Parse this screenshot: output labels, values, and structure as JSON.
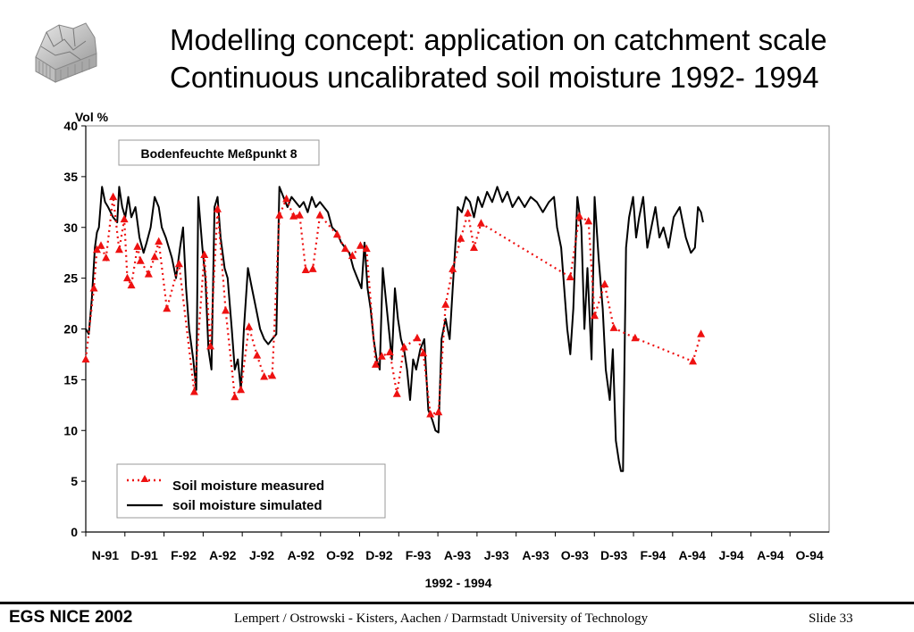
{
  "title_line1": "Modelling concept: application on catchment scale",
  "title_line2": "Continuous uncalibrated soil moisture 1992- 1994",
  "footer": {
    "conference": "EGS NICE 2002",
    "credit": "Lempert / Ostrowski  - Kisters, Aachen / Darmstadt University of Technology",
    "slide": "Slide  33"
  },
  "logo_icon": "catchment-terrain-icon",
  "chart_data": {
    "type": "line",
    "title": "Bodenfeuchte Meßpunkt 8",
    "ylabel": "Vol %",
    "xlabel": "1992 - 1994",
    "ylim": [
      0,
      40
    ],
    "yticks": [
      0,
      5,
      10,
      15,
      20,
      25,
      30,
      35,
      40
    ],
    "xlim": [
      0,
      36.67
    ],
    "x_unit": "months since Nov 1991",
    "xticks": [
      "N-91",
      "D-91",
      "F-92",
      "A-92",
      "J-92",
      "A-92",
      "O-92",
      "D-92",
      "F-93",
      "A-93",
      "J-93",
      "A-93",
      "O-93",
      "D-93",
      "F-94",
      "A-94",
      "J-94",
      "A-94",
      "O-94"
    ],
    "grid": false,
    "legend_position": "bottom-left",
    "colors": {
      "measured": "#ee1111",
      "simulated": "#000000"
    },
    "series": [
      {
        "name": "Soil moisture measured",
        "style": "dotted-triangle",
        "points": [
          [
            0,
            17
          ],
          [
            0.4,
            24
          ],
          [
            0.55,
            27.8
          ],
          [
            0.75,
            28.2
          ],
          [
            1.0,
            27
          ],
          [
            1.35,
            33
          ],
          [
            1.65,
            27.8
          ],
          [
            1.9,
            30.8
          ],
          [
            2.05,
            25
          ],
          [
            2.25,
            24.3
          ],
          [
            2.55,
            28.1
          ],
          [
            2.7,
            26.7
          ],
          [
            3.1,
            25.4
          ],
          [
            3.4,
            27.1
          ],
          [
            3.6,
            28.6
          ],
          [
            4.0,
            22
          ],
          [
            4.6,
            26.4
          ],
          [
            5.35,
            13.8
          ],
          [
            5.85,
            27.3
          ],
          [
            6.15,
            18.3
          ],
          [
            6.5,
            31.8
          ],
          [
            6.9,
            21.8
          ],
          [
            7.35,
            13.3
          ],
          [
            7.65,
            14
          ],
          [
            8.05,
            20.2
          ],
          [
            8.45,
            17.4
          ],
          [
            8.8,
            15.3
          ],
          [
            9.2,
            15.4
          ],
          [
            9.55,
            31.2
          ],
          [
            9.9,
            32.8
          ],
          [
            10.25,
            31.1
          ],
          [
            10.55,
            31.2
          ],
          [
            10.85,
            25.8
          ],
          [
            11.2,
            25.9
          ],
          [
            11.55,
            31.2
          ],
          [
            12.4,
            29.3
          ],
          [
            12.8,
            27.9
          ],
          [
            13.15,
            27.2
          ],
          [
            13.55,
            28.2
          ],
          [
            13.85,
            27.9
          ],
          [
            14.3,
            16.5
          ],
          [
            14.6,
            17.3
          ],
          [
            15.0,
            17.7
          ],
          [
            15.35,
            13.6
          ],
          [
            15.7,
            18.2
          ],
          [
            16.35,
            19.1
          ],
          [
            16.65,
            17.6
          ],
          [
            17.0,
            11.6
          ],
          [
            17.4,
            11.8
          ],
          [
            17.75,
            22.4
          ],
          [
            18.1,
            25.9
          ],
          [
            18.5,
            28.9
          ],
          [
            18.85,
            31.4
          ],
          [
            19.15,
            28
          ],
          [
            19.5,
            30.4
          ],
          [
            23.9,
            25.1
          ],
          [
            24.35,
            31.1
          ],
          [
            24.8,
            30.6
          ],
          [
            25.1,
            21.3
          ],
          [
            25.6,
            24.4
          ],
          [
            26.05,
            20.1
          ],
          [
            27.1,
            19.1
          ],
          [
            29.95,
            16.8
          ],
          [
            30.35,
            19.5
          ]
        ]
      },
      {
        "name": "soil moisture simulated",
        "style": "solid",
        "points": [
          [
            0,
            20
          ],
          [
            0.15,
            19.5
          ],
          [
            0.3,
            23
          ],
          [
            0.45,
            28
          ],
          [
            0.55,
            29.5
          ],
          [
            0.65,
            30
          ],
          [
            0.8,
            34
          ],
          [
            0.95,
            32.5
          ],
          [
            1.1,
            32
          ],
          [
            1.35,
            31
          ],
          [
            1.55,
            30.5
          ],
          [
            1.65,
            34
          ],
          [
            1.8,
            32
          ],
          [
            1.95,
            31
          ],
          [
            2.1,
            33
          ],
          [
            2.25,
            31
          ],
          [
            2.45,
            32
          ],
          [
            2.65,
            29
          ],
          [
            2.85,
            27.5
          ],
          [
            3.0,
            28.5
          ],
          [
            3.2,
            30
          ],
          [
            3.4,
            33
          ],
          [
            3.6,
            32
          ],
          [
            3.75,
            30
          ],
          [
            3.95,
            29
          ],
          [
            4.1,
            28
          ],
          [
            4.25,
            27
          ],
          [
            4.45,
            25
          ],
          [
            4.65,
            28
          ],
          [
            4.8,
            30
          ],
          [
            4.95,
            24
          ],
          [
            5.1,
            20
          ],
          [
            5.3,
            17
          ],
          [
            5.45,
            14
          ],
          [
            5.55,
            33
          ],
          [
            5.75,
            28
          ],
          [
            5.9,
            25
          ],
          [
            6.05,
            18
          ],
          [
            6.2,
            16
          ],
          [
            6.35,
            32
          ],
          [
            6.5,
            33
          ],
          [
            6.65,
            29
          ],
          [
            6.85,
            26
          ],
          [
            7.0,
            25
          ],
          [
            7.2,
            20
          ],
          [
            7.35,
            16
          ],
          [
            7.5,
            17
          ],
          [
            7.65,
            14
          ],
          [
            7.8,
            20
          ],
          [
            8.0,
            26
          ],
          [
            8.2,
            24
          ],
          [
            8.4,
            22
          ],
          [
            8.6,
            20
          ],
          [
            8.8,
            19
          ],
          [
            9.0,
            18.5
          ],
          [
            9.2,
            19
          ],
          [
            9.4,
            19.5
          ],
          [
            9.55,
            34
          ],
          [
            9.75,
            33
          ],
          [
            9.95,
            32
          ],
          [
            10.15,
            33
          ],
          [
            10.35,
            32.5
          ],
          [
            10.55,
            32
          ],
          [
            10.75,
            32.5
          ],
          [
            10.95,
            31.5
          ],
          [
            11.15,
            33
          ],
          [
            11.35,
            32
          ],
          [
            11.55,
            32.5
          ],
          [
            11.75,
            32
          ],
          [
            11.95,
            31.5
          ],
          [
            12.15,
            30
          ],
          [
            12.4,
            29.5
          ],
          [
            12.6,
            28.5
          ],
          [
            12.8,
            28
          ],
          [
            13.0,
            27.5
          ],
          [
            13.2,
            26
          ],
          [
            13.4,
            25
          ],
          [
            13.6,
            24
          ],
          [
            13.75,
            28.5
          ],
          [
            13.9,
            24
          ],
          [
            14.05,
            22
          ],
          [
            14.2,
            19
          ],
          [
            14.35,
            17
          ],
          [
            14.5,
            16
          ],
          [
            14.65,
            26
          ],
          [
            14.8,
            23
          ],
          [
            14.95,
            20
          ],
          [
            15.1,
            17
          ],
          [
            15.25,
            24
          ],
          [
            15.4,
            21
          ],
          [
            15.55,
            19
          ],
          [
            15.7,
            18
          ],
          [
            15.85,
            16
          ],
          [
            16.0,
            13
          ],
          [
            16.15,
            17
          ],
          [
            16.3,
            16
          ],
          [
            16.5,
            18
          ],
          [
            16.7,
            19
          ],
          [
            16.9,
            12
          ],
          [
            17.1,
            11
          ],
          [
            17.25,
            10
          ],
          [
            17.4,
            9.8
          ],
          [
            17.55,
            19
          ],
          [
            17.75,
            21
          ],
          [
            17.95,
            19
          ],
          [
            18.1,
            24
          ],
          [
            18.35,
            32
          ],
          [
            18.55,
            31.5
          ],
          [
            18.75,
            33
          ],
          [
            18.95,
            32.5
          ],
          [
            19.15,
            31
          ],
          [
            19.35,
            33
          ],
          [
            19.55,
            32
          ],
          [
            19.8,
            33.5
          ],
          [
            20.05,
            32.5
          ],
          [
            20.3,
            34
          ],
          [
            20.55,
            32.5
          ],
          [
            20.8,
            33.5
          ],
          [
            21.05,
            32
          ],
          [
            21.35,
            33
          ],
          [
            21.65,
            32
          ],
          [
            21.95,
            33
          ],
          [
            22.25,
            32.5
          ],
          [
            22.55,
            31.5
          ],
          [
            22.85,
            32.5
          ],
          [
            23.1,
            33
          ],
          [
            23.25,
            30
          ],
          [
            23.45,
            28
          ],
          [
            23.6,
            24
          ],
          [
            23.75,
            20
          ],
          [
            23.9,
            17.5
          ],
          [
            24.05,
            22
          ],
          [
            24.25,
            33
          ],
          [
            24.45,
            30
          ],
          [
            24.6,
            20
          ],
          [
            24.75,
            26
          ],
          [
            24.95,
            17
          ],
          [
            25.1,
            33
          ],
          [
            25.3,
            27
          ],
          [
            25.5,
            22
          ],
          [
            25.65,
            16
          ],
          [
            25.85,
            13
          ],
          [
            26.0,
            18
          ],
          [
            26.15,
            9
          ],
          [
            26.3,
            7
          ],
          [
            26.4,
            6
          ],
          [
            26.5,
            6
          ],
          [
            26.65,
            28
          ],
          [
            26.8,
            31
          ],
          [
            27.0,
            33
          ],
          [
            27.15,
            29
          ],
          [
            27.3,
            31
          ],
          [
            27.5,
            33
          ],
          [
            27.7,
            28
          ],
          [
            27.9,
            30
          ],
          [
            28.1,
            32
          ],
          [
            28.3,
            29
          ],
          [
            28.5,
            30
          ],
          [
            28.75,
            28
          ],
          [
            29.0,
            31
          ],
          [
            29.3,
            32
          ],
          [
            29.6,
            29
          ],
          [
            29.85,
            27.5
          ],
          [
            30.05,
            28
          ],
          [
            30.2,
            32
          ],
          [
            30.35,
            31.5
          ],
          [
            30.45,
            30.5
          ]
        ]
      }
    ]
  }
}
